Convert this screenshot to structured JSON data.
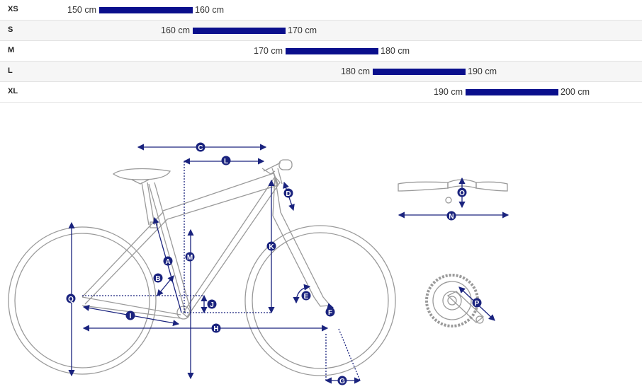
{
  "size_table": {
    "rows": [
      {
        "size": "XS",
        "from": "150 cm",
        "to": "160 cm"
      },
      {
        "size": "S",
        "from": "160 cm",
        "to": "170 cm"
      },
      {
        "size": "M",
        "from": "170 cm",
        "to": "180 cm"
      },
      {
        "size": "L",
        "from": "180 cm",
        "to": "190 cm"
      },
      {
        "size": "XL",
        "from": "190 cm",
        "to": "200 cm"
      }
    ]
  },
  "geometry_labels": [
    "A",
    "B",
    "C",
    "D",
    "E",
    "F",
    "G",
    "H",
    "I",
    "J",
    "K",
    "L",
    "M",
    "N",
    "O",
    "P",
    "Q"
  ],
  "colors": {
    "accent": "#0a0f8c",
    "line": "#9a9a9a",
    "dimension": "#1a237e"
  }
}
